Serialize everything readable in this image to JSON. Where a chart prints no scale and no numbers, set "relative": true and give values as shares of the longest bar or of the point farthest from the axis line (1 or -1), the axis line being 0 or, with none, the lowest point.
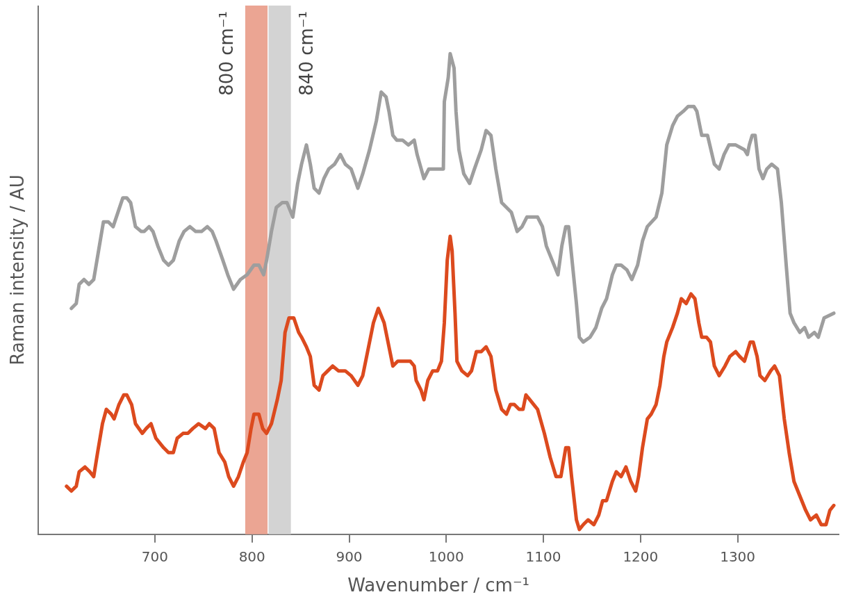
{
  "chart_data": {
    "type": "line",
    "xlabel": "Wavenumber / cm⁻¹",
    "ylabel": "Raman intensity / AU",
    "relative": true,
    "xlim": [
      580,
      1404
    ],
    "xticks": [
      700,
      800,
      900,
      1000,
      1100,
      1200,
      1300
    ],
    "grid": false,
    "legend": false,
    "marker": "none",
    "line_style": "solid",
    "bands": [
      {
        "axis": "x",
        "from": 793,
        "to": 816,
        "label": "800 cm⁻¹",
        "color": "#eba593"
      },
      {
        "axis": "x",
        "from": 817,
        "to": 840,
        "label": "840 cm⁻¹",
        "color": "#d3d3d3"
      }
    ],
    "series": [
      {
        "color": "#9e9e9e",
        "x": [
          614,
          619,
          622,
          627,
          632,
          637,
          642,
          647,
          652,
          657,
          662,
          667,
          671,
          675,
          680,
          686,
          689,
          694,
          698,
          703,
          709,
          714,
          719,
          725,
          730,
          736,
          742,
          748,
          754,
          759,
          763,
          770,
          775,
          781,
          788,
          795,
          802,
          807,
          812,
          815,
          820,
          825,
          831,
          836,
          842,
          847,
          851,
          856,
          860,
          864,
          869,
          874,
          879,
          885,
          891,
          896,
          902,
          909,
          914,
          921,
          928,
          933,
          938,
          941,
          945,
          949,
          955,
          961,
          967,
          970,
          977,
          982,
          988,
          993,
          997,
          998,
          1002,
          1004,
          1008,
          1010,
          1013,
          1018,
          1024,
          1029,
          1036,
          1041,
          1046,
          1051,
          1057,
          1062,
          1067,
          1073,
          1078,
          1083,
          1089,
          1094,
          1099,
          1103,
          1109,
          1115,
          1119,
          1123,
          1126,
          1129,
          1134,
          1137,
          1141,
          1148,
          1154,
          1160,
          1165,
          1171,
          1175,
          1180,
          1186,
          1191,
          1197,
          1202,
          1207,
          1216,
          1222,
          1227,
          1233,
          1238,
          1244,
          1249,
          1255,
          1258,
          1263,
          1269,
          1276,
          1281,
          1286,
          1291,
          1298,
          1307,
          1310,
          1312,
          1315,
          1318,
          1322,
          1326,
          1330,
          1335,
          1341,
          1345,
          1350,
          1354,
          1358,
          1364,
          1369,
          1373,
          1379,
          1383,
          1389,
          1399
        ],
        "values": [
          0.47,
          0.48,
          0.52,
          0.53,
          0.52,
          0.53,
          0.59,
          0.65,
          0.65,
          0.64,
          0.67,
          0.7,
          0.7,
          0.69,
          0.64,
          0.63,
          0.63,
          0.64,
          0.63,
          0.6,
          0.57,
          0.56,
          0.57,
          0.61,
          0.63,
          0.64,
          0.63,
          0.63,
          0.64,
          0.63,
          0.61,
          0.57,
          0.54,
          0.51,
          0.53,
          0.54,
          0.56,
          0.56,
          0.54,
          0.57,
          0.63,
          0.68,
          0.69,
          0.69,
          0.66,
          0.73,
          0.77,
          0.81,
          0.77,
          0.72,
          0.71,
          0.74,
          0.76,
          0.77,
          0.79,
          0.77,
          0.76,
          0.72,
          0.75,
          0.8,
          0.86,
          0.92,
          0.91,
          0.88,
          0.83,
          0.82,
          0.82,
          0.81,
          0.82,
          0.79,
          0.74,
          0.76,
          0.76,
          0.76,
          0.76,
          0.9,
          0.95,
          1.0,
          0.97,
          0.88,
          0.8,
          0.75,
          0.73,
          0.76,
          0.8,
          0.84,
          0.83,
          0.76,
          0.69,
          0.68,
          0.67,
          0.63,
          0.64,
          0.66,
          0.66,
          0.66,
          0.64,
          0.6,
          0.57,
          0.54,
          0.6,
          0.64,
          0.64,
          0.58,
          0.48,
          0.41,
          0.4,
          0.41,
          0.43,
          0.47,
          0.49,
          0.54,
          0.56,
          0.56,
          0.55,
          0.53,
          0.56,
          0.61,
          0.64,
          0.66,
          0.71,
          0.81,
          0.85,
          0.87,
          0.88,
          0.89,
          0.89,
          0.88,
          0.83,
          0.83,
          0.77,
          0.76,
          0.79,
          0.81,
          0.81,
          0.8,
          0.79,
          0.81,
          0.83,
          0.83,
          0.76,
          0.74,
          0.76,
          0.77,
          0.76,
          0.69,
          0.56,
          0.46,
          0.44,
          0.42,
          0.43,
          0.41,
          0.42,
          0.41,
          0.45,
          0.46
        ]
      },
      {
        "color": "#dc4a1e",
        "x": [
          609,
          614,
          619,
          622,
          628,
          633,
          637,
          641,
          646,
          650,
          655,
          658,
          663,
          668,
          671,
          676,
          680,
          687,
          691,
          696,
          701,
          709,
          714,
          719,
          723,
          729,
          734,
          739,
          745,
          752,
          756,
          761,
          766,
          772,
          776,
          781,
          786,
          791,
          795,
          799,
          802,
          807,
          811,
          815,
          820,
          826,
          830,
          834,
          838,
          843,
          848,
          851,
          856,
          860,
          864,
          869,
          873,
          878,
          883,
          889,
          896,
          902,
          909,
          914,
          919,
          925,
          930,
          936,
          939,
          945,
          950,
          957,
          963,
          967,
          969,
          974,
          977,
          981,
          986,
          991,
          995,
          998,
          1001,
          1004,
          1006,
          1009,
          1011,
          1016,
          1022,
          1026,
          1031,
          1036,
          1041,
          1046,
          1051,
          1057,
          1062,
          1066,
          1070,
          1075,
          1079,
          1082,
          1086,
          1090,
          1094,
          1101,
          1107,
          1113,
          1118,
          1123,
          1126,
          1129,
          1134,
          1137,
          1141,
          1146,
          1152,
          1157,
          1161,
          1165,
          1171,
          1175,
          1180,
          1185,
          1190,
          1195,
          1198,
          1202,
          1207,
          1211,
          1216,
          1220,
          1224,
          1227,
          1233,
          1238,
          1242,
          1247,
          1252,
          1256,
          1260,
          1263,
          1268,
          1272,
          1276,
          1281,
          1287,
          1292,
          1298,
          1302,
          1307,
          1310,
          1313,
          1316,
          1320,
          1323,
          1328,
          1334,
          1338,
          1343,
          1348,
          1353,
          1358,
          1364,
          1370,
          1375,
          1381,
          1386,
          1391,
          1395,
          1399
        ],
        "values": [
          0.1,
          0.09,
          0.1,
          0.13,
          0.14,
          0.13,
          0.12,
          0.17,
          0.23,
          0.26,
          0.25,
          0.24,
          0.27,
          0.29,
          0.29,
          0.27,
          0.23,
          0.21,
          0.22,
          0.23,
          0.2,
          0.18,
          0.17,
          0.17,
          0.2,
          0.21,
          0.21,
          0.22,
          0.23,
          0.22,
          0.23,
          0.22,
          0.17,
          0.15,
          0.12,
          0.1,
          0.12,
          0.15,
          0.17,
          0.22,
          0.25,
          0.25,
          0.22,
          0.21,
          0.23,
          0.28,
          0.32,
          0.42,
          0.45,
          0.45,
          0.42,
          0.41,
          0.39,
          0.37,
          0.31,
          0.3,
          0.33,
          0.34,
          0.35,
          0.34,
          0.34,
          0.33,
          0.31,
          0.33,
          0.38,
          0.44,
          0.47,
          0.44,
          0.41,
          0.35,
          0.36,
          0.36,
          0.36,
          0.35,
          0.32,
          0.3,
          0.28,
          0.32,
          0.34,
          0.34,
          0.36,
          0.44,
          0.57,
          0.62,
          0.59,
          0.46,
          0.36,
          0.34,
          0.33,
          0.34,
          0.38,
          0.38,
          0.39,
          0.37,
          0.3,
          0.26,
          0.25,
          0.27,
          0.27,
          0.26,
          0.26,
          0.29,
          0.28,
          0.27,
          0.26,
          0.21,
          0.16,
          0.12,
          0.12,
          0.18,
          0.18,
          0.12,
          0.03,
          0.01,
          0.02,
          0.03,
          0.02,
          0.04,
          0.07,
          0.07,
          0.11,
          0.13,
          0.12,
          0.14,
          0.11,
          0.09,
          0.12,
          0.18,
          0.24,
          0.25,
          0.27,
          0.31,
          0.37,
          0.4,
          0.43,
          0.46,
          0.49,
          0.48,
          0.5,
          0.49,
          0.44,
          0.41,
          0.41,
          0.4,
          0.35,
          0.33,
          0.35,
          0.37,
          0.38,
          0.37,
          0.36,
          0.38,
          0.4,
          0.4,
          0.37,
          0.33,
          0.32,
          0.34,
          0.35,
          0.33,
          0.24,
          0.17,
          0.11,
          0.08,
          0.05,
          0.03,
          0.04,
          0.02,
          0.02,
          0.05,
          0.06
        ]
      }
    ]
  }
}
